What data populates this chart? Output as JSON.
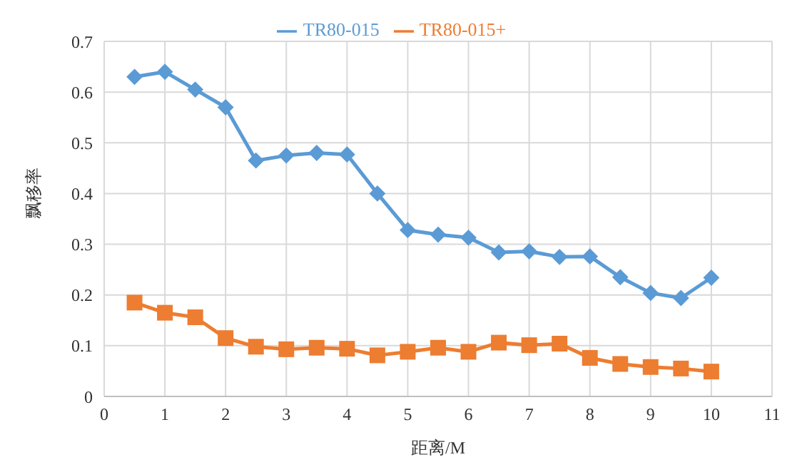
{
  "chart_data": {
    "type": "line",
    "xlabel": "距离/M",
    "ylabel": "飘移率",
    "x": [
      0.5,
      1,
      1.5,
      2,
      2.5,
      3,
      3.5,
      4,
      4.5,
      5,
      5.5,
      6,
      6.5,
      7,
      7.5,
      8,
      8.5,
      9,
      9.5,
      10
    ],
    "series": [
      {
        "name": "TR80-015",
        "color": "#5b9bd5",
        "marker": "diamond",
        "values": [
          0.63,
          0.64,
          0.605,
          0.57,
          0.465,
          0.475,
          0.48,
          0.477,
          0.4,
          0.328,
          0.319,
          0.313,
          0.284,
          0.286,
          0.275,
          0.276,
          0.235,
          0.204,
          0.194,
          0.234
        ]
      },
      {
        "name": "TR80-015+",
        "color": "#ed7d31",
        "marker": "square",
        "values": [
          0.185,
          0.165,
          0.156,
          0.115,
          0.098,
          0.093,
          0.096,
          0.094,
          0.081,
          0.088,
          0.096,
          0.088,
          0.106,
          0.101,
          0.104,
          0.076,
          0.064,
          0.058,
          0.055,
          0.049
        ]
      }
    ],
    "xlim": [
      0,
      11
    ],
    "xticks": [
      0,
      1,
      2,
      3,
      4,
      5,
      6,
      7,
      8,
      9,
      10,
      11
    ],
    "ylim": [
      0,
      0.7
    ],
    "yticks": [
      0,
      0.1,
      0.2,
      0.3,
      0.4,
      0.5,
      0.6,
      0.7
    ],
    "grid": true,
    "legend": "top",
    "line_style": "solid"
  }
}
